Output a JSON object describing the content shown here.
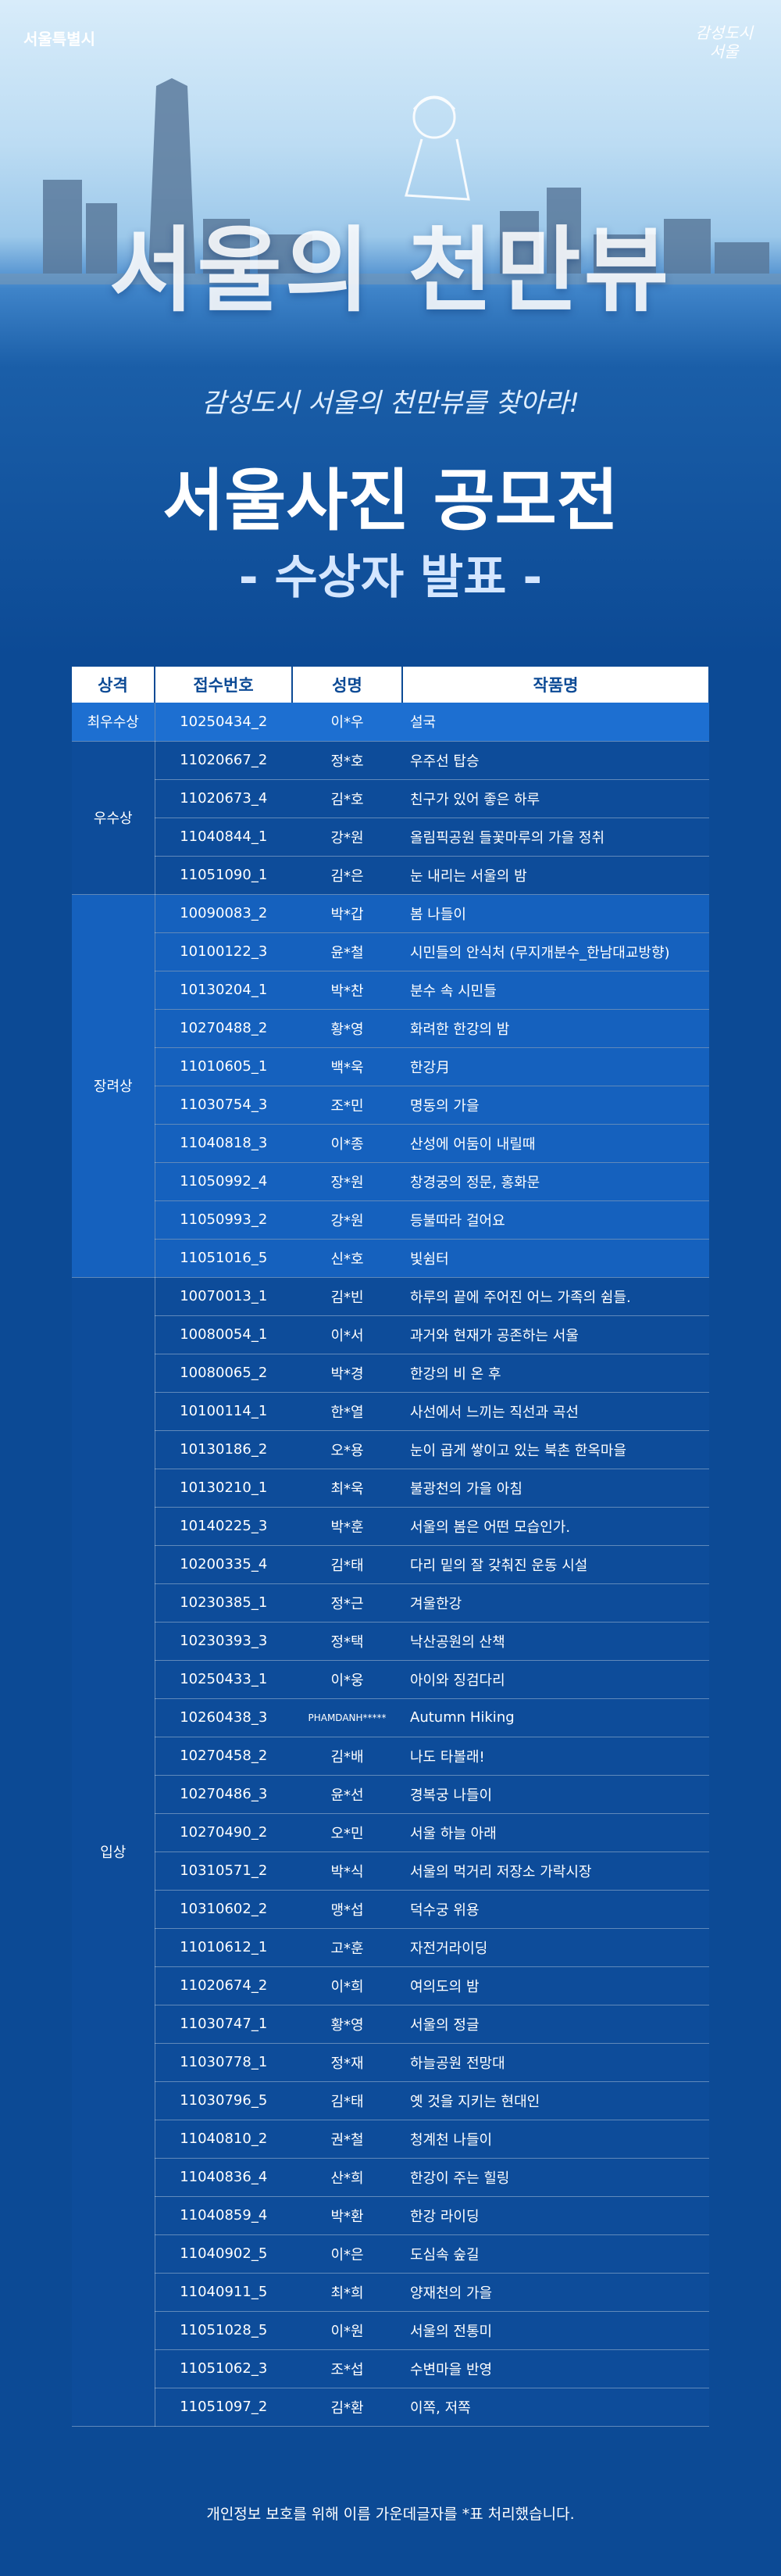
{
  "header": {
    "logo": "서울특별시",
    "corner_logo": [
      "감성도시",
      "서울"
    ],
    "hero_title": "서울의 천만뷰",
    "tagline": "감성도시 서울의 천만뷰를 찾아라!",
    "title": "서울사진 공모전",
    "subtitle": "- 수상자 발표 -"
  },
  "table": {
    "columns": [
      "상격",
      "접수번호",
      "성명",
      "작품명"
    ],
    "groups": [
      {
        "label": "최우수상",
        "rows": [
          [
            "10250434_2",
            "이*우",
            "설국"
          ]
        ]
      },
      {
        "label": "우수상",
        "rows": [
          [
            "11020667_2",
            "정*호",
            "우주선 탑승"
          ],
          [
            "11020673_4",
            "김*호",
            "친구가 있어 좋은 하루"
          ],
          [
            "11040844_1",
            "강*원",
            "올림픽공원 들꽃마루의 가을 정취"
          ],
          [
            "11051090_1",
            "김*은",
            "눈 내리는 서울의 밤"
          ]
        ]
      },
      {
        "label": "장려상",
        "rows": [
          [
            "10090083_2",
            "박*갑",
            "봄 나들이"
          ],
          [
            "10100122_3",
            "윤*철",
            "시민들의 안식처 (무지개분수_한남대교방향)"
          ],
          [
            "10130204_1",
            "박*찬",
            "분수 속 시민들"
          ],
          [
            "10270488_2",
            "황*영",
            "화려한 한강의 밤"
          ],
          [
            "11010605_1",
            "백*욱",
            "한강月"
          ],
          [
            "11030754_3",
            "조*민",
            "명동의 가을"
          ],
          [
            "11040818_3",
            "이*종",
            "산성에 어둠이 내릴때"
          ],
          [
            "11050992_4",
            "장*원",
            "창경궁의 정문, 홍화문"
          ],
          [
            "11050993_2",
            "강*원",
            "등불따라 걸어요"
          ],
          [
            "11051016_5",
            "신*호",
            "빛쉼터"
          ]
        ]
      },
      {
        "label": "입상",
        "rows": [
          [
            "10070013_1",
            "김*빈",
            "하루의 끝에 주어진 어느 가족의 쉼들."
          ],
          [
            "10080054_1",
            "이*서",
            "과거와 현재가 공존하는 서울"
          ],
          [
            "10080065_2",
            "박*경",
            "한강의 비 온 후"
          ],
          [
            "10100114_1",
            "한*열",
            "사선에서 느끼는 직선과 곡선"
          ],
          [
            "10130186_2",
            "오*용",
            "눈이 곱게 쌓이고 있는 북촌 한옥마을"
          ],
          [
            "10130210_1",
            "최*욱",
            "불광천의 가을 아침"
          ],
          [
            "10140225_3",
            "박*훈",
            "서울의 봄은 어떤 모습인가."
          ],
          [
            "10200335_4",
            "김*태",
            "다리 밑의 잘 갖춰진 운동 시설"
          ],
          [
            "10230385_1",
            "정*근",
            "겨울한강"
          ],
          [
            "10230393_3",
            "정*택",
            "낙산공원의 산책"
          ],
          [
            "10250433_1",
            "이*웅",
            "아이와 징검다리"
          ],
          [
            "10260438_3",
            "PHAMDANH*****",
            "Autumn Hiking"
          ],
          [
            "10270458_2",
            "김*배",
            "나도 타볼래!"
          ],
          [
            "10270486_3",
            "윤*선",
            "경복궁 나들이"
          ],
          [
            "10270490_2",
            "오*민",
            "서울 하늘 아래"
          ],
          [
            "10310571_2",
            "박*식",
            "서울의 먹거리 저장소 가락시장"
          ],
          [
            "10310602_2",
            "맹*섭",
            "덕수궁 위용"
          ],
          [
            "11010612_1",
            "고*훈",
            "자전거라이딩"
          ],
          [
            "11020674_2",
            "이*희",
            "여의도의 밤"
          ],
          [
            "11030747_1",
            "황*영",
            "서울의 정글"
          ],
          [
            "11030778_1",
            "정*재",
            "하늘공원 전망대"
          ],
          [
            "11030796_5",
            "김*태",
            "옛 것을 지키는 현대인"
          ],
          [
            "11040810_2",
            "권*철",
            "청계천 나들이"
          ],
          [
            "11040836_4",
            "산*희",
            "한강이 주는 힐링"
          ],
          [
            "11040859_4",
            "박*환",
            "한강 라이딩"
          ],
          [
            "11040902_5",
            "이*은",
            "도심속 숲길"
          ],
          [
            "11040911_5",
            "최*희",
            "양재천의 가을"
          ],
          [
            "11051028_5",
            "이*원",
            "서울의 전통미"
          ],
          [
            "11051062_3",
            "조*섭",
            "수변마을 반영"
          ],
          [
            "11051097_2",
            "김*환",
            "이쪽, 저쪽"
          ]
        ]
      }
    ]
  },
  "footnote": "개인정보 보호를 위해 이름 가운데글자를 *표 처리했습니다."
}
